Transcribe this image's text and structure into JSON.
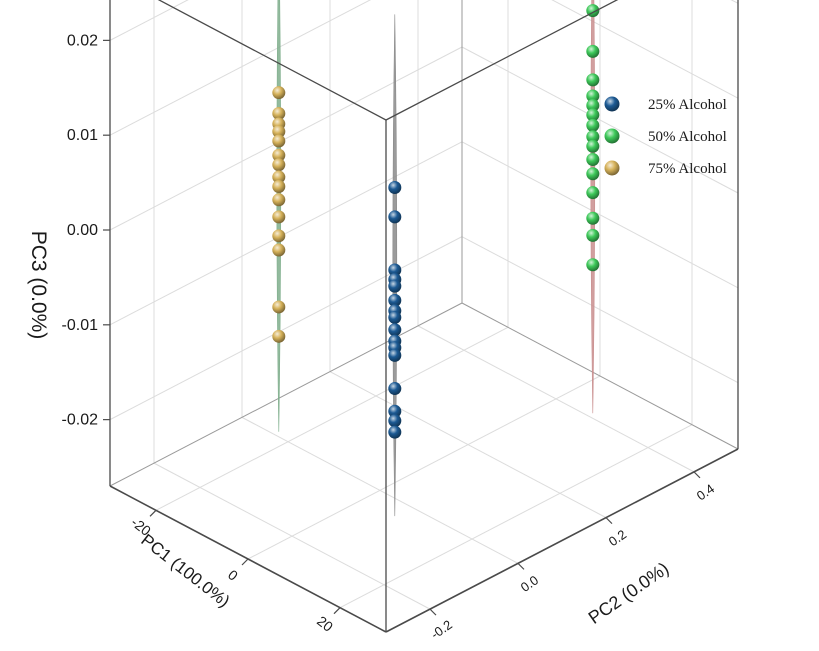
{
  "chart_data": {
    "type": "scatter",
    "projection": "3d",
    "title": "",
    "axes": {
      "x": {
        "label": "PC1 (100.0%)",
        "range": [
          -30,
          30
        ],
        "ticks": [
          -20,
          0,
          20
        ],
        "tick_labels": [
          "-20",
          "0",
          "20"
        ]
      },
      "y": {
        "label": "PC2 (0.0%)",
        "range": [
          -0.3,
          0.5
        ],
        "ticks": [
          -0.2,
          0.0,
          0.2,
          0.4
        ],
        "tick_labels": [
          "-0.2",
          "0.0",
          "0.2",
          "0.4"
        ]
      },
      "z": {
        "label": "PC3 (0.0%)",
        "range": [
          -0.027,
          0.027
        ],
        "ticks": [
          -0.02,
          -0.01,
          0.0,
          0.01,
          0.02
        ],
        "tick_labels": [
          "-0.02",
          "-0.01",
          "0.00",
          "0.01",
          "0.02"
        ]
      }
    },
    "grid": true,
    "legend_position": "top-right",
    "series": [
      {
        "name": "25% Alcohol",
        "color": "#1c5a94",
        "ellipse_color": "#8a8a8a",
        "pc1": 8,
        "pc2": -0.05,
        "pc3": [
          0.0082,
          0.0051,
          -0.0005,
          -0.0015,
          -0.0022,
          -0.0037,
          -0.0048,
          -0.0055,
          -0.0068,
          -0.008,
          -0.0087,
          -0.0095,
          -0.013,
          -0.0154,
          -0.0164,
          -0.0176
        ]
      },
      {
        "name": "50% Alcohol",
        "color": "#3ec95a",
        "ellipse_color": "#c98e8e",
        "pc1": 8,
        "pc2": 0.4,
        "pc3": [
          0.016,
          0.0117,
          0.0087,
          0.007,
          0.006,
          0.005,
          0.0039,
          0.0027,
          0.0017,
          0.0003,
          -0.0012,
          -0.0032,
          -0.0059,
          -0.0077,
          -0.0108
        ]
      },
      {
        "name": "75% Alcohol",
        "color": "#d6b25a",
        "ellipse_color": "#7fae8c",
        "pc1": -22,
        "pc2": 0.0,
        "pc3": [
          0.0093,
          0.0071,
          0.006,
          0.0052,
          0.0042,
          0.0027,
          0.0017,
          0.0004,
          -0.0006,
          -0.002,
          -0.0038,
          -0.0058,
          -0.0073,
          -0.0133,
          -0.0164
        ]
      }
    ]
  }
}
